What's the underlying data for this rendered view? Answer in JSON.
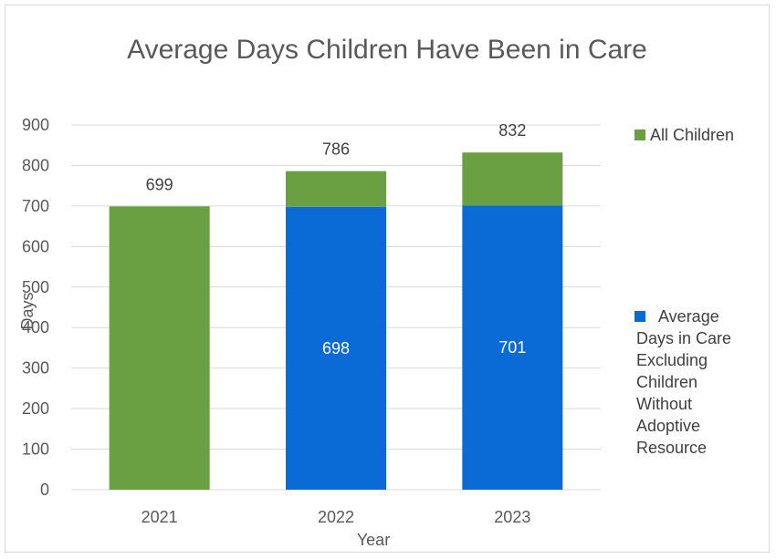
{
  "chart_data": {
    "type": "bar",
    "stacked": true,
    "title": "Average Days Children Have Been in Care",
    "xlabel": "Year",
    "ylabel": "Days",
    "categories": [
      "2021",
      "2022",
      "2023"
    ],
    "ylim": [
      0,
      900
    ],
    "yticks": [
      0,
      100,
      200,
      300,
      400,
      500,
      600,
      700,
      800,
      900
    ],
    "grid": true,
    "legend_position": "right",
    "series": [
      {
        "name": "Average Days in Care Excluding Children Without Adoptive Resource",
        "legend_lines": [
          "Average",
          "Days in Care",
          "Excluding",
          "Children",
          "Without",
          "Adoptive",
          "Resource"
        ],
        "color": "#0a6ad6",
        "values": [
          null,
          698,
          701
        ],
        "labels": [
          "",
          "698",
          "701"
        ]
      },
      {
        "name": "All Children",
        "legend_lines": [
          "All Children"
        ],
        "color": "#6aa041",
        "totals": [
          699,
          786,
          832
        ],
        "labels": [
          "699",
          "786",
          "832"
        ]
      }
    ]
  }
}
